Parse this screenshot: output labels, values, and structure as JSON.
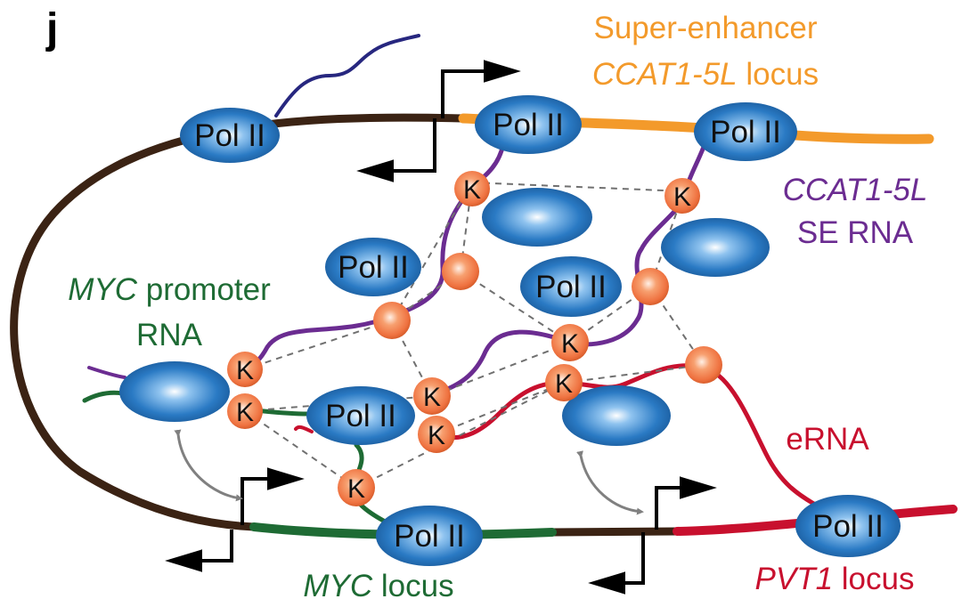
{
  "panel_label": "j",
  "polymerase_label": "Pol II",
  "kinase_label": "K",
  "labels": {
    "super_enhancer_line1": "Super-enhancer",
    "ccat_locus_italic": "CCAT1-5L",
    "ccat_locus_suffix": " locus",
    "se_rna_italic": "CCAT1-5L",
    "se_rna_line2": "SE RNA",
    "myc_promoter_italic": "MYC",
    "myc_promoter_suffix": " promoter",
    "myc_promoter_line2": "RNA",
    "erna": "eRNA",
    "myc_locus_italic": "MYC",
    "myc_locus_suffix": " locus",
    "pvt1_locus_italic": "PVT1",
    "pvt1_locus_suffix": " locus"
  },
  "colors": {
    "chromatin": "#3b2314",
    "super_enhancer": "#f39a2b",
    "ccat_rna": "#6b2c91",
    "myc": "#1e6b34",
    "erna": "#c8102e",
    "nascent_rna": "#27277f",
    "pol_ii_fill": "#2a7ac4",
    "kinase_fill": "#f07840",
    "arrow": "#000000",
    "double_arrow": "#808080",
    "dashes": "#707070"
  }
}
